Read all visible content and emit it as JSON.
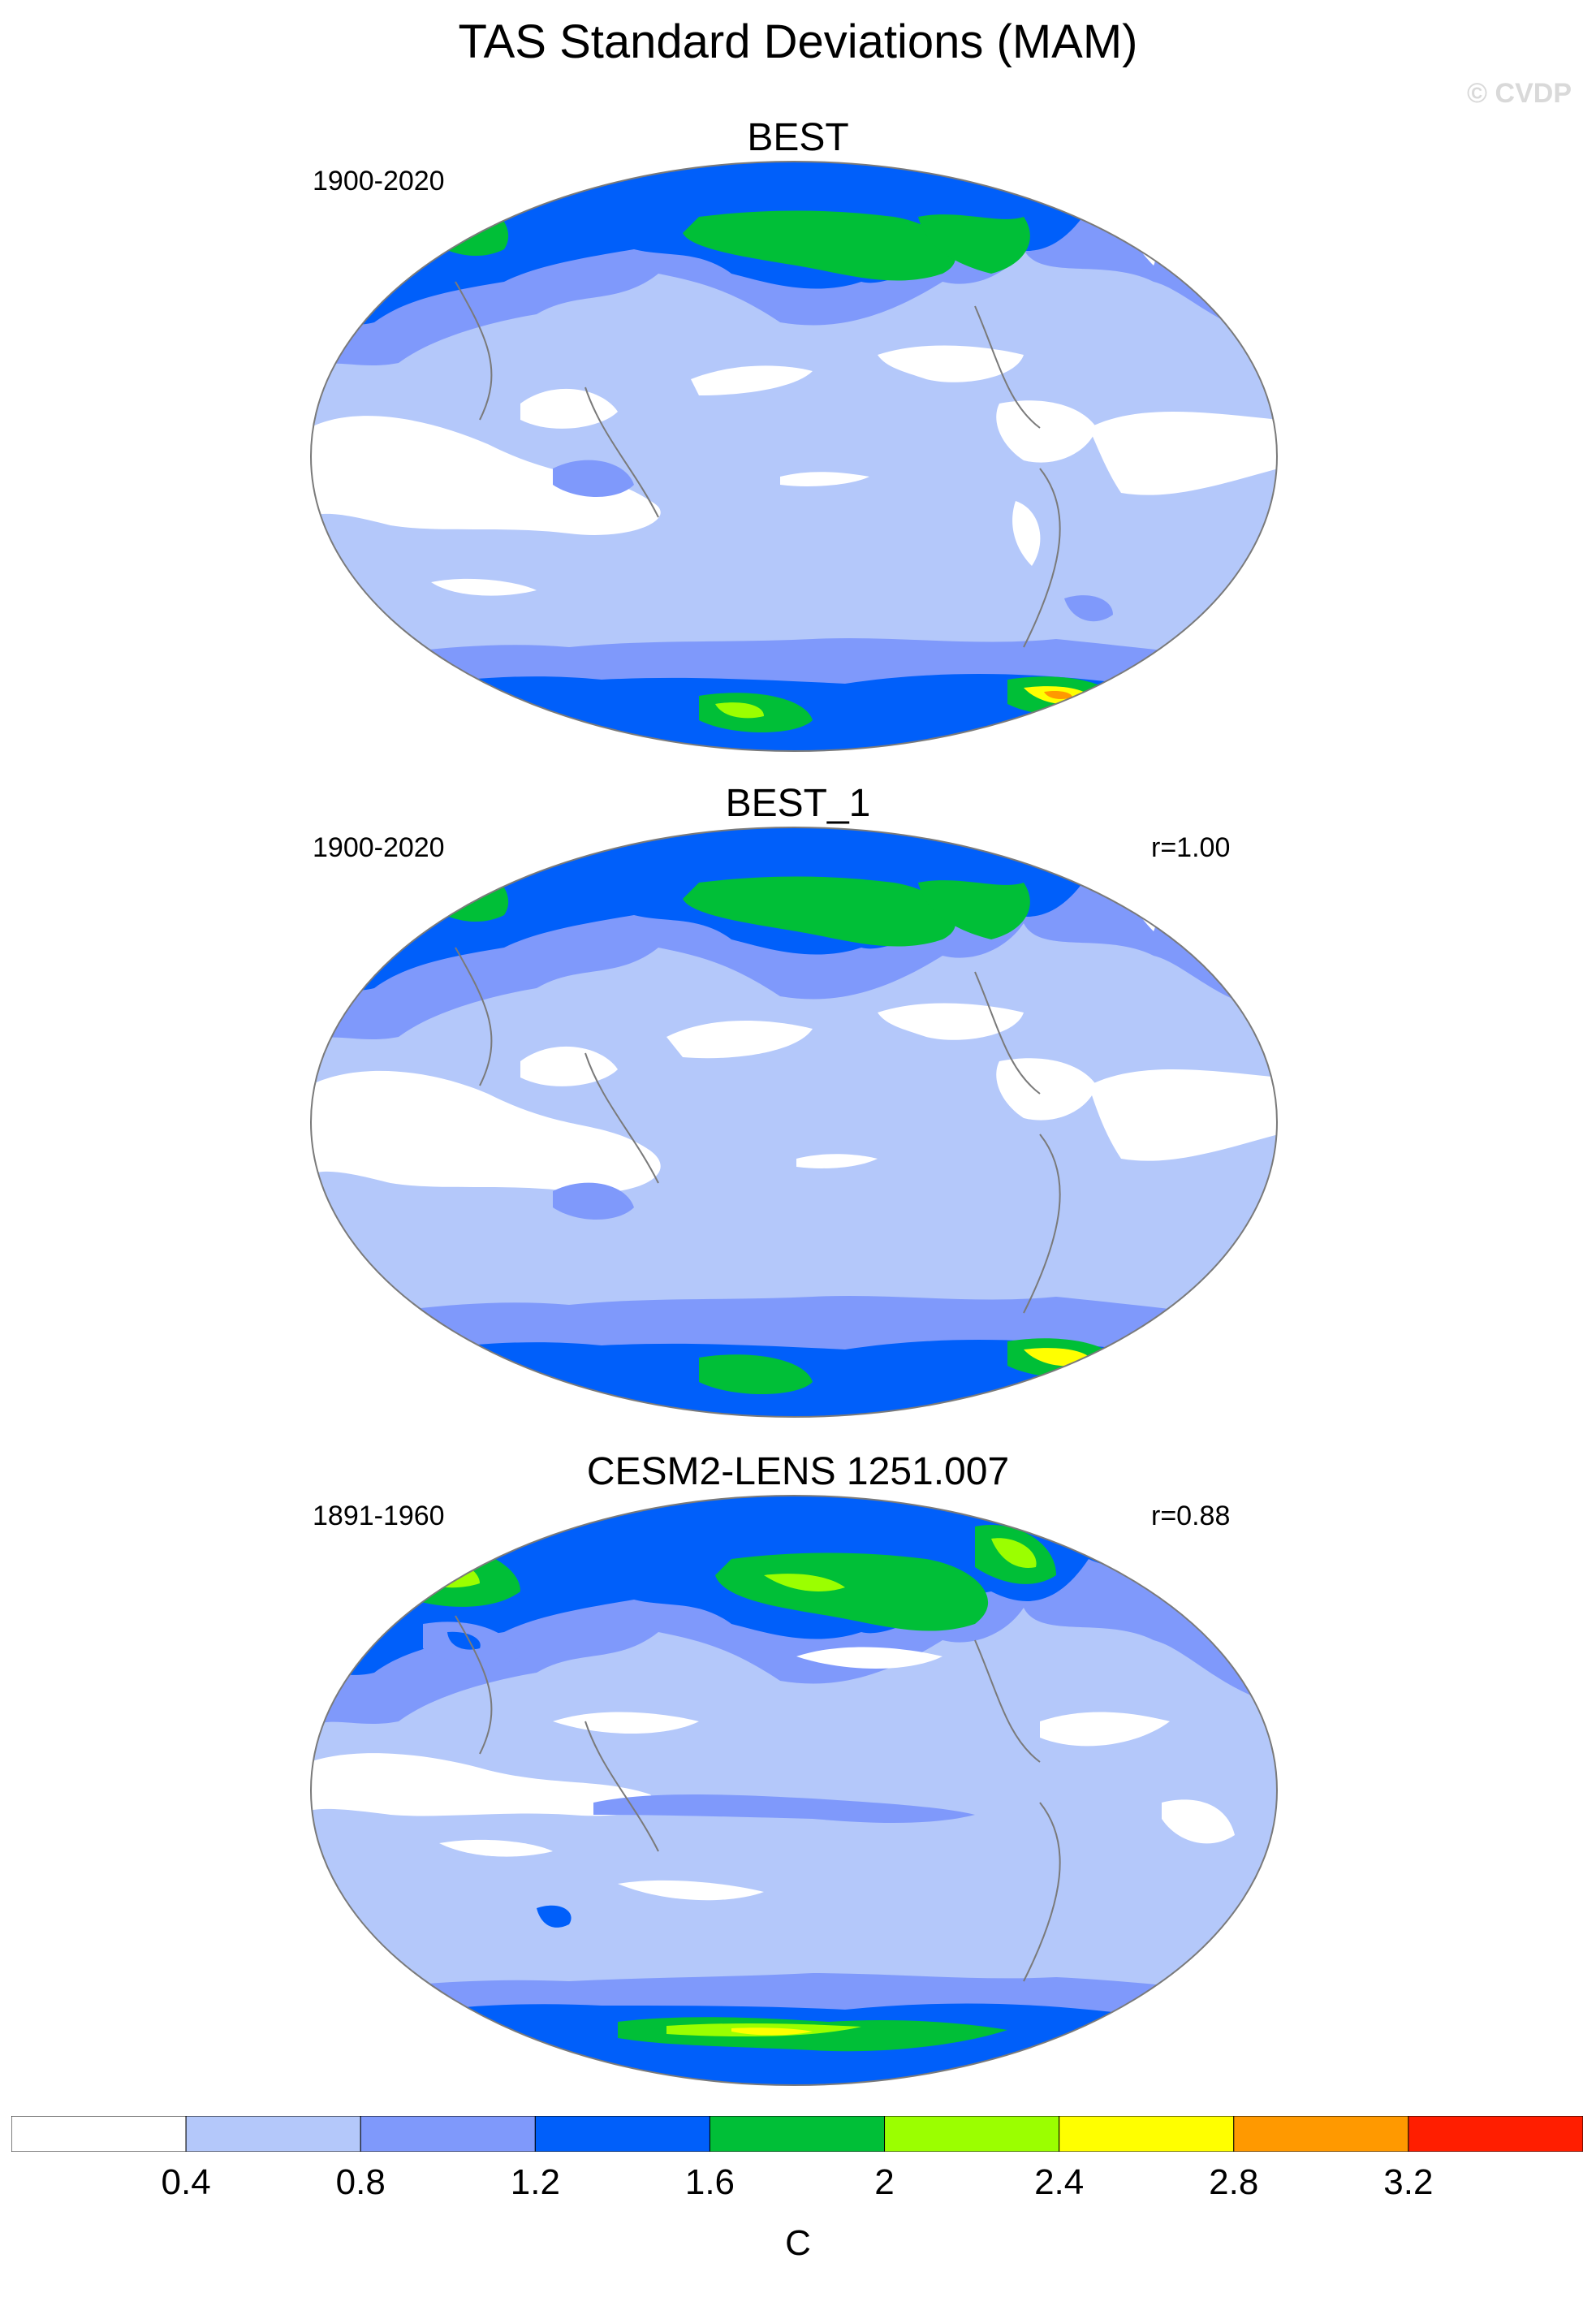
{
  "title": "TAS Standard Deviations (MAM)",
  "copyright": "© CVDP",
  "panels": [
    {
      "title": "BEST",
      "period": "1900-2020",
      "correlation": ""
    },
    {
      "title": "BEST_1",
      "period": "1900-2020",
      "correlation": "r=1.00"
    },
    {
      "title": "CESM2-LENS 1251.007",
      "period": "1891-1960",
      "correlation": "r=0.88"
    }
  ],
  "colorbar": {
    "labels": [
      "0.4",
      "0.8",
      "1.2",
      "1.6",
      "2",
      "2.4",
      "2.8",
      "3.2"
    ],
    "colors": [
      "#ffffff",
      "#b4c8fa",
      "#7f99fb",
      "#005ffa",
      "#00bf37",
      "#9bff00",
      "#ffff00",
      "#ff9900",
      "#ff1e00"
    ],
    "units": "C"
  },
  "colors": {
    "ocean_low": "#b4c8fa",
    "land_outline": "#7a7a7a"
  }
}
